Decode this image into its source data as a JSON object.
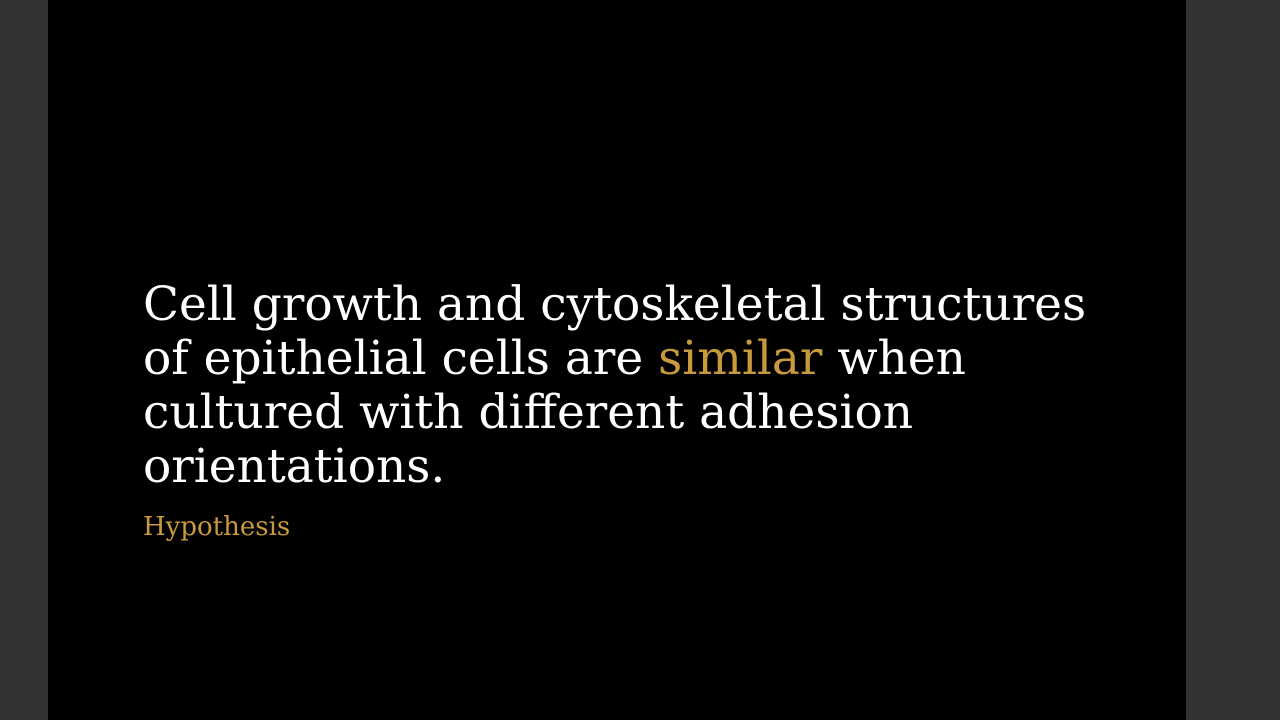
{
  "slide": {
    "statement_before": "Cell growth and cytoskeletal structures of epithelial cells are ",
    "statement_highlight": "similar",
    "statement_after": " when cultured with different adhesion orientations.",
    "caption": "Hypothesis"
  },
  "colors": {
    "background": "#000000",
    "frame": "#333333",
    "text": "#ffffff",
    "accent": "#c79a3c"
  }
}
